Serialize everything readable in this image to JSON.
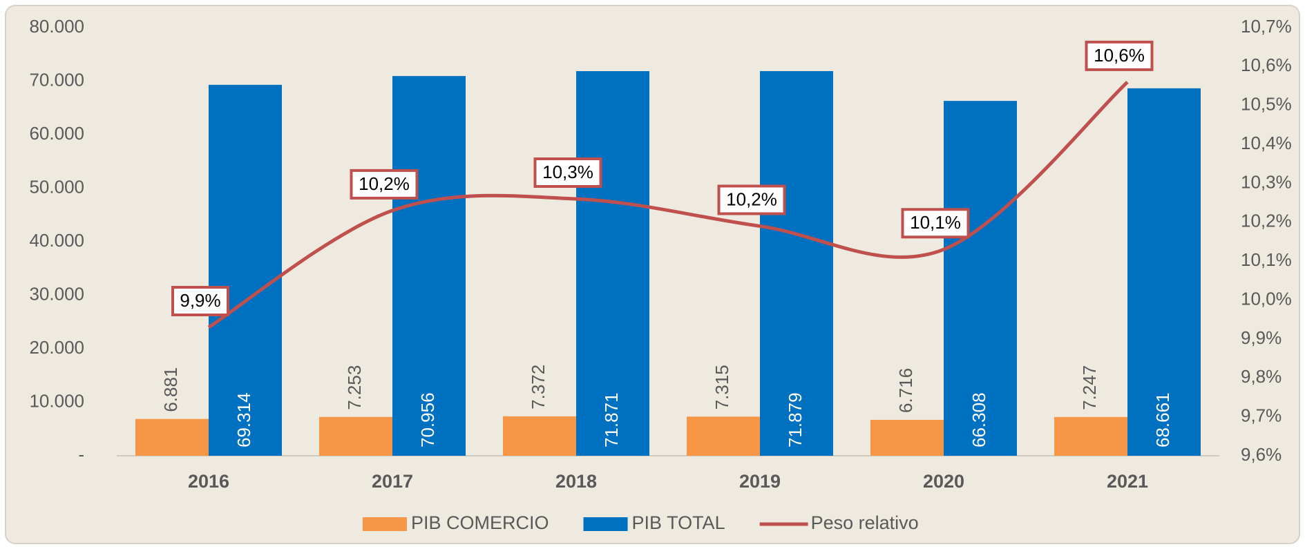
{
  "chart_data": {
    "type": "bar",
    "categories": [
      "2016",
      "2017",
      "2018",
      "2019",
      "2020",
      "2021"
    ],
    "series": [
      {
        "name": "PIB COMERCIO",
        "color": "#f79646",
        "values": [
          6881,
          7253,
          7372,
          7315,
          6716,
          7247
        ],
        "value_labels": [
          "6.881",
          "7.253",
          "7.372",
          "7.315",
          "6.716",
          "7.247"
        ]
      },
      {
        "name": "PIB TOTAL",
        "color": "#0070c0",
        "values": [
          69314,
          70956,
          71871,
          71879,
          66308,
          68661
        ],
        "value_labels": [
          "69.314",
          "70.956",
          "71.871",
          "71.879",
          "66.308",
          "68.661"
        ]
      },
      {
        "name": "Peso relativo",
        "color": "#c0504d",
        "type": "line",
        "axis": "y2",
        "values": [
          9.93,
          10.23,
          10.26,
          10.19,
          10.13,
          10.56
        ],
        "value_labels": [
          "9,9%",
          "10,2%",
          "10,3%",
          "10,2%",
          "10,1%",
          "10,6%"
        ]
      }
    ],
    "ylim": [
      0,
      80000
    ],
    "yticks": [
      {
        "value": 0,
        "label": "-"
      },
      {
        "value": 10000,
        "label": "10.000"
      },
      {
        "value": 20000,
        "label": "20.000"
      },
      {
        "value": 30000,
        "label": "30.000"
      },
      {
        "value": 40000,
        "label": "40.000"
      },
      {
        "value": 50000,
        "label": "50.000"
      },
      {
        "value": 60000,
        "label": "60.000"
      },
      {
        "value": 70000,
        "label": "70.000"
      },
      {
        "value": 80000,
        "label": "80.000"
      }
    ],
    "y2lim": [
      9.6,
      10.7
    ],
    "y2ticks": [
      {
        "value": 9.6,
        "label": "9,6%"
      },
      {
        "value": 9.7,
        "label": "9,7%"
      },
      {
        "value": 9.8,
        "label": "9,8%"
      },
      {
        "value": 9.9,
        "label": "9,9%"
      },
      {
        "value": 10.0,
        "label": "10,0%"
      },
      {
        "value": 10.1,
        "label": "10,1%"
      },
      {
        "value": 10.2,
        "label": "10,2%"
      },
      {
        "value": 10.3,
        "label": "10,3%"
      },
      {
        "value": 10.4,
        "label": "10,4%"
      },
      {
        "value": 10.5,
        "label": "10,5%"
      },
      {
        "value": 10.6,
        "label": "10,6%"
      },
      {
        "value": 10.7,
        "label": "10,7%"
      }
    ],
    "legend": "bottom",
    "grid": false
  }
}
